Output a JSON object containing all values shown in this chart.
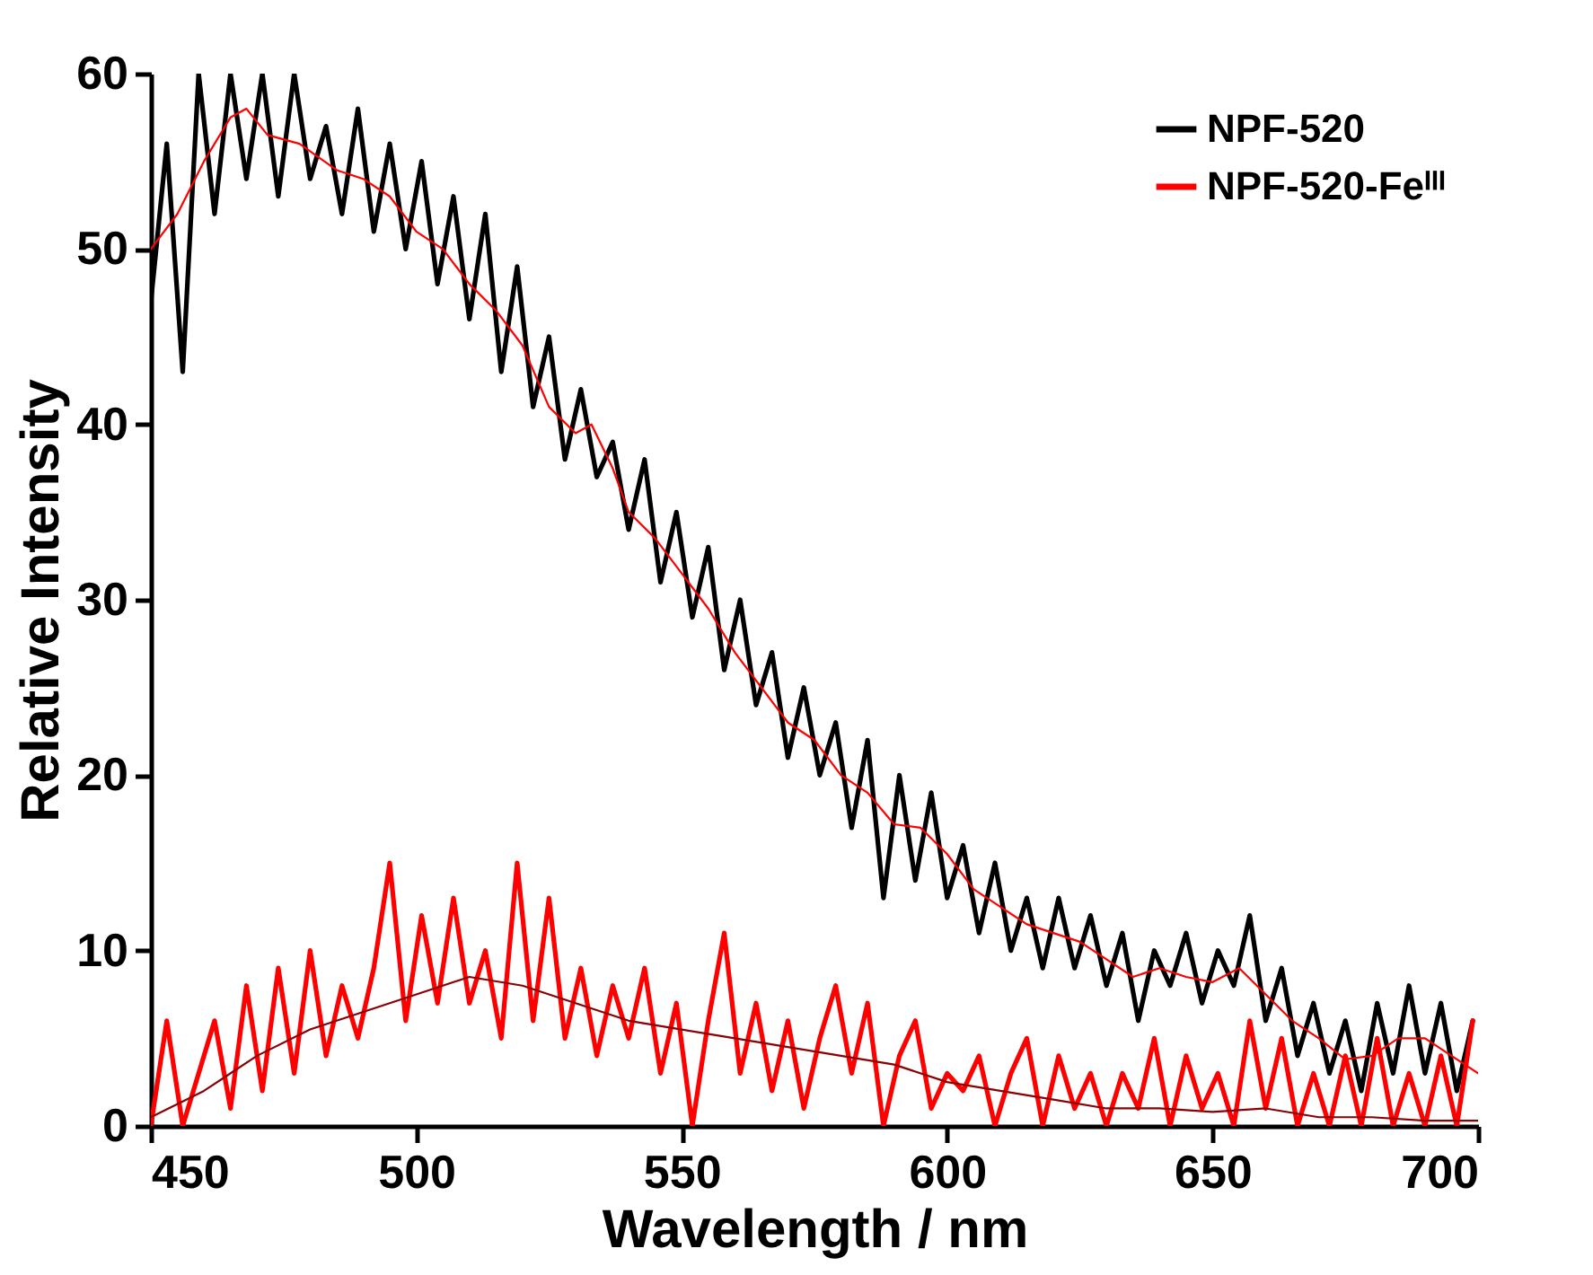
{
  "chart_data": {
    "type": "line",
    "xlabel": "Wavelength / nm",
    "ylabel": "Relative Intensity",
    "xlim": [
      450,
      700
    ],
    "xticks": [
      450,
      500,
      550,
      600,
      650,
      700
    ],
    "ylim": [
      0,
      60
    ],
    "yticks": [
      0,
      10,
      20,
      30,
      40,
      50,
      60
    ],
    "grid": false,
    "legend": "top right",
    "line_style": "solid",
    "marker": "none",
    "x": [
      450,
      453,
      456,
      459,
      462,
      465,
      468,
      471,
      474,
      477,
      480,
      483,
      486,
      489,
      492,
      495,
      498,
      501,
      504,
      507,
      510,
      513,
      516,
      519,
      522,
      525,
      528,
      531,
      534,
      537,
      540,
      543,
      546,
      549,
      552,
      555,
      558,
      561,
      564,
      567,
      570,
      573,
      576,
      579,
      582,
      585,
      588,
      591,
      594,
      597,
      600,
      603,
      606,
      609,
      612,
      615,
      618,
      621,
      624,
      627,
      630,
      633,
      636,
      639,
      642,
      645,
      648,
      651,
      654,
      657,
      660,
      663,
      666,
      669,
      672,
      675,
      678,
      681,
      684,
      687,
      690,
      693,
      696,
      699
    ],
    "series": [
      {
        "name": "NPF-520",
        "color": "#000000",
        "values": [
          47,
          56,
          43,
          60,
          52,
          60,
          54,
          60,
          53,
          60,
          54,
          57,
          52,
          58,
          51,
          56,
          50,
          55,
          48,
          53,
          46,
          52,
          43,
          49,
          41,
          45,
          38,
          42,
          37,
          39,
          34,
          38,
          31,
          35,
          29,
          33,
          26,
          30,
          24,
          27,
          21,
          25,
          20,
          23,
          17,
          22,
          13,
          20,
          14,
          19,
          13,
          16,
          11,
          15,
          10,
          13,
          9,
          13,
          9,
          12,
          8,
          11,
          6,
          10,
          8,
          11,
          7,
          10,
          8,
          12,
          6,
          9,
          4,
          7,
          3,
          6,
          2,
          7,
          3,
          8,
          3,
          7,
          2,
          6
        ]
      },
      {
        "name": "NPF-520-Feᴵᴵᴵ",
        "color": "#ff0000",
        "values": [
          0,
          6,
          0,
          3,
          6,
          1,
          8,
          2,
          9,
          3,
          10,
          4,
          8,
          5,
          9,
          15,
          6,
          12,
          7,
          13,
          7,
          10,
          5,
          15,
          6,
          13,
          5,
          9,
          4,
          8,
          5,
          9,
          3,
          7,
          0,
          6,
          11,
          3,
          7,
          2,
          6,
          1,
          5,
          8,
          3,
          7,
          0,
          4,
          6,
          1,
          3,
          2,
          4,
          0,
          3,
          5,
          0,
          4,
          1,
          3,
          0,
          3,
          1,
          5,
          0,
          4,
          1,
          3,
          0,
          6,
          1,
          5,
          0,
          3,
          0,
          4,
          0,
          5,
          0,
          3,
          0,
          4,
          0,
          6
        ]
      },
      {
        "color": "#ff0000",
        "x": [
          450,
          455,
          460,
          465,
          468,
          472,
          478,
          485,
          490,
          495,
          500,
          505,
          510,
          515,
          520,
          525,
          530,
          533,
          537,
          540,
          545,
          550,
          555,
          560,
          565,
          570,
          575,
          580,
          585,
          590,
          595,
          600,
          605,
          610,
          615,
          620,
          625,
          630,
          635,
          640,
          645,
          650,
          655,
          660,
          665,
          670,
          675,
          680,
          685,
          690,
          695,
          700
        ],
        "values": [
          50,
          52,
          55,
          57.5,
          58,
          56.5,
          56,
          54.5,
          54,
          53,
          51,
          50,
          48,
          46.5,
          44.5,
          41,
          39.5,
          40,
          37.5,
          35,
          33.5,
          31.5,
          29.5,
          27,
          25,
          23,
          22,
          20,
          19,
          17.2,
          17,
          15.5,
          13.5,
          12.5,
          11.5,
          11,
          10.5,
          9.5,
          8.5,
          9,
          8.5,
          8.2,
          9,
          7.5,
          6,
          5,
          3.8,
          4,
          5,
          5,
          4,
          3
        ]
      },
      {
        "color": "#8b0000",
        "x": [
          450,
          460,
          470,
          480,
          490,
          500,
          510,
          520,
          530,
          540,
          550,
          560,
          570,
          580,
          590,
          600,
          610,
          620,
          630,
          640,
          650,
          660,
          670,
          680,
          690,
          700
        ],
        "values": [
          0.5,
          2,
          4,
          5.5,
          6.5,
          7.5,
          8.5,
          8,
          7,
          6,
          5.5,
          5,
          4.5,
          4,
          3.5,
          2.5,
          2,
          1.5,
          1,
          1,
          0.8,
          1,
          0.5,
          0.5,
          0.3,
          0.3
        ]
      }
    ]
  }
}
